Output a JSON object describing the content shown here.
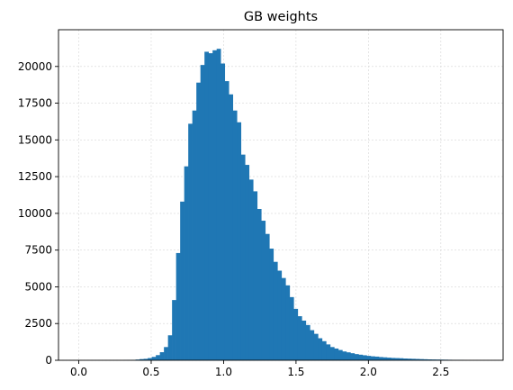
{
  "chart_data": {
    "type": "bar",
    "title": "GB weights",
    "xlabel": "",
    "ylabel": "",
    "xlim": [
      -0.14,
      2.93
    ],
    "ylim": [
      0,
      22500
    ],
    "xticks": [
      0.0,
      0.5,
      1.0,
      1.5,
      2.0,
      2.5
    ],
    "xtick_labels": [
      "0.0",
      "0.5",
      "1.0",
      "1.5",
      "2.0",
      "2.5"
    ],
    "yticks": [
      0,
      2500,
      5000,
      7500,
      10000,
      12500,
      15000,
      17500,
      20000
    ],
    "ytick_labels": [
      "0",
      "2500",
      "5000",
      "7500",
      "10000",
      "12500",
      "15000",
      "17500",
      "20000"
    ],
    "grid": true,
    "bar_color": "#1f77b4",
    "bin_start": 0.0,
    "bin_width": 0.028,
    "values": [
      0,
      0,
      0,
      0,
      0,
      0,
      0,
      0,
      0,
      0,
      0,
      10,
      20,
      30,
      50,
      80,
      100,
      150,
      230,
      350,
      550,
      900,
      1700,
      4100,
      7300,
      10800,
      13200,
      16100,
      17000,
      18900,
      20100,
      21000,
      20900,
      21100,
      21200,
      20200,
      19000,
      18100,
      17000,
      16200,
      14000,
      13300,
      12300,
      11500,
      10300,
      9500,
      8600,
      7600,
      6700,
      6100,
      5600,
      5100,
      4300,
      3500,
      3000,
      2700,
      2400,
      2050,
      1800,
      1500,
      1300,
      1080,
      900,
      800,
      700,
      600,
      540,
      480,
      420,
      380,
      340,
      300,
      270,
      250,
      220,
      200,
      180,
      160,
      150,
      140,
      120,
      110,
      100,
      90,
      80,
      70,
      60,
      55,
      50,
      45,
      40,
      35,
      30,
      25,
      20
    ]
  }
}
